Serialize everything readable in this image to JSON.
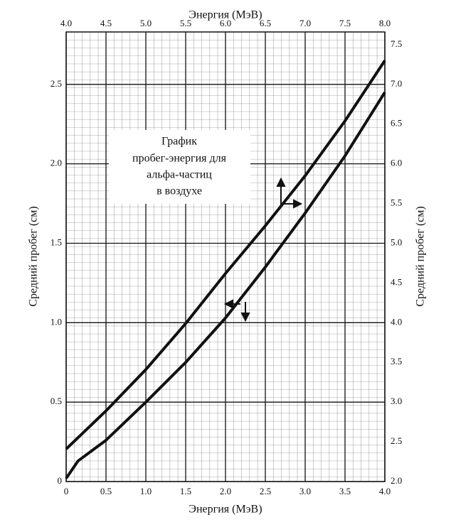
{
  "chart_data": {
    "type": "line",
    "x_label": "Энергия (МэВ)",
    "x2_label": "Энергия (МэВ)",
    "y_label": "Средний пробег (см)",
    "y2_label": "Средний пробег (см)",
    "annotation": [
      "График",
      "пробег-энергия для",
      "альфа-частиц",
      "в воздухе"
    ],
    "xlim": [
      0,
      4
    ],
    "xticks": [
      0,
      0.5,
      {
        "value": 1,
        "label": "1.0"
      },
      1.5,
      {
        "value": 2,
        "label": "2.0"
      },
      2.5,
      {
        "value": 3,
        "label": "3.0"
      },
      3.5,
      {
        "value": 4,
        "label": "4.0"
      }
    ],
    "x2lim": [
      4,
      8
    ],
    "x2ticks": [
      {
        "value": 4,
        "label": "4.0"
      },
      4.5,
      {
        "value": 5,
        "label": "5.0"
      },
      5.5,
      {
        "value": 6,
        "label": "6.0"
      },
      6.5,
      {
        "value": 7,
        "label": "7.0"
      },
      7.5,
      {
        "value": 8,
        "label": "8.0"
      }
    ],
    "ylim": [
      0,
      2.83
    ],
    "yticks": [
      0,
      0.5,
      {
        "value": 1,
        "label": "1.0"
      },
      1.5,
      {
        "value": 2,
        "label": "2.0"
      },
      2.5
    ],
    "y2lim": [
      2,
      7.66
    ],
    "y2ticks": [
      {
        "value": 2,
        "label": "2.0"
      },
      2.5,
      {
        "value": 3,
        "label": "3.0"
      },
      3.5,
      {
        "value": 4,
        "label": "4.0"
      },
      4.5,
      {
        "value": 5,
        "label": "5.0"
      },
      5.5,
      {
        "value": 6,
        "label": "6.0"
      },
      6.5,
      {
        "value": 7,
        "label": "7.0"
      },
      7.5
    ],
    "grid": true,
    "series": [
      {
        "color": "#111111",
        "x": [
          0,
          0.15,
          0.5,
          1,
          1.5,
          2,
          2.5,
          3,
          3.5,
          4
        ],
        "values": [
          0.02,
          0.13,
          0.26,
          0.5,
          0.75,
          1.03,
          1.35,
          1.69,
          2.05,
          2.45
        ]
      },
      {
        "color": "#111111",
        "axis": "y2",
        "xaxis": "x2",
        "x": [
          4,
          4.5,
          5,
          5.5,
          6,
          6.5,
          7,
          7.5,
          8
        ],
        "values": [
          2.41,
          2.89,
          3.41,
          3.99,
          4.62,
          5.22,
          5.85,
          6.54,
          7.3
        ]
      }
    ]
  }
}
